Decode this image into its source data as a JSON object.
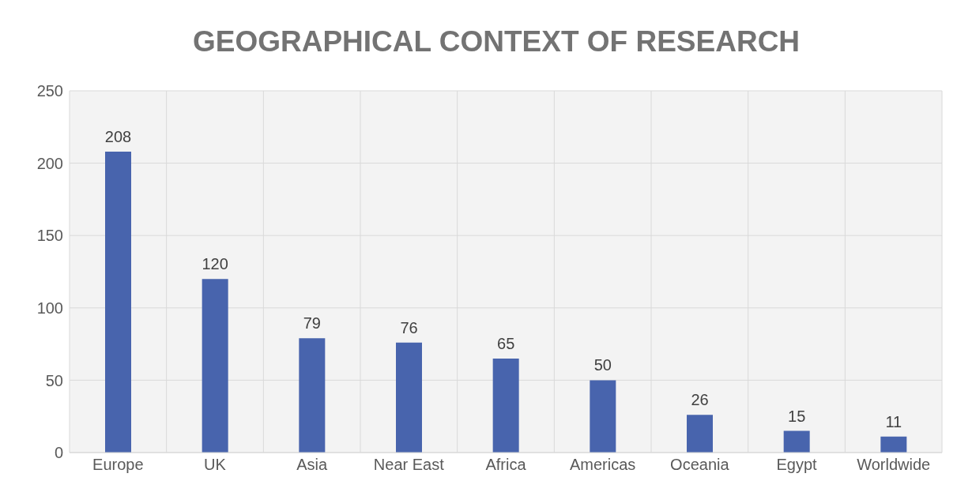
{
  "chart_data": {
    "type": "bar",
    "title": "GEOGRAPHICAL CONTEXT OF RESEARCH",
    "categories": [
      "Europe",
      "UK",
      "Asia",
      "Near East",
      "Africa",
      "Americas",
      "Oceania",
      "Egypt",
      "Worldwide"
    ],
    "values": [
      208,
      120,
      79,
      76,
      65,
      50,
      26,
      15,
      11
    ],
    "color": "#4864ad",
    "ylim": [
      0,
      250
    ],
    "yticks": [
      0,
      50,
      100,
      150,
      200,
      250
    ],
    "grid": true,
    "data_labels": true
  }
}
